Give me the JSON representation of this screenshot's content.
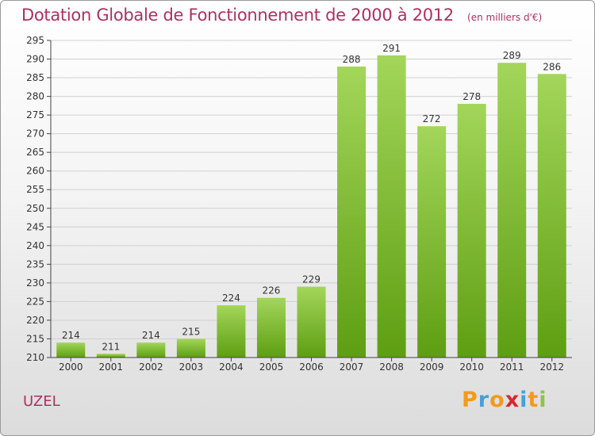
{
  "title": "Dotation Globale de Fonctionnement de 2000 à 2012",
  "subtitle": "(en milliers d'€)",
  "place": "UZEL",
  "logo": {
    "letters": [
      "P",
      "r",
      "o",
      "x",
      "i",
      "t",
      "i"
    ],
    "colors": [
      "#f29a1d",
      "#4a9fd5",
      "#f29a1d",
      "#d9272e",
      "#4a9fd5",
      "#f29a1d",
      "#8cc63f"
    ]
  },
  "colors": {
    "bar_top": "#a3d65a",
    "bar_bottom": "#5e9e12",
    "title": "#b0305e"
  },
  "chart_data": {
    "type": "bar",
    "categories": [
      "2000",
      "2001",
      "2002",
      "2003",
      "2004",
      "2005",
      "2006",
      "2007",
      "2008",
      "2009",
      "2010",
      "2011",
      "2012"
    ],
    "values": [
      214,
      211,
      214,
      215,
      224,
      226,
      229,
      288,
      291,
      272,
      278,
      289,
      286
    ],
    "ylim": [
      210,
      295
    ],
    "yticks": [
      210,
      215,
      220,
      225,
      230,
      235,
      240,
      245,
      250,
      255,
      260,
      265,
      270,
      275,
      280,
      285,
      290,
      295
    ],
    "grid": true,
    "title": "Dotation Globale de Fonctionnement de 2000 à 2012",
    "xlabel": "",
    "ylabel": ""
  }
}
